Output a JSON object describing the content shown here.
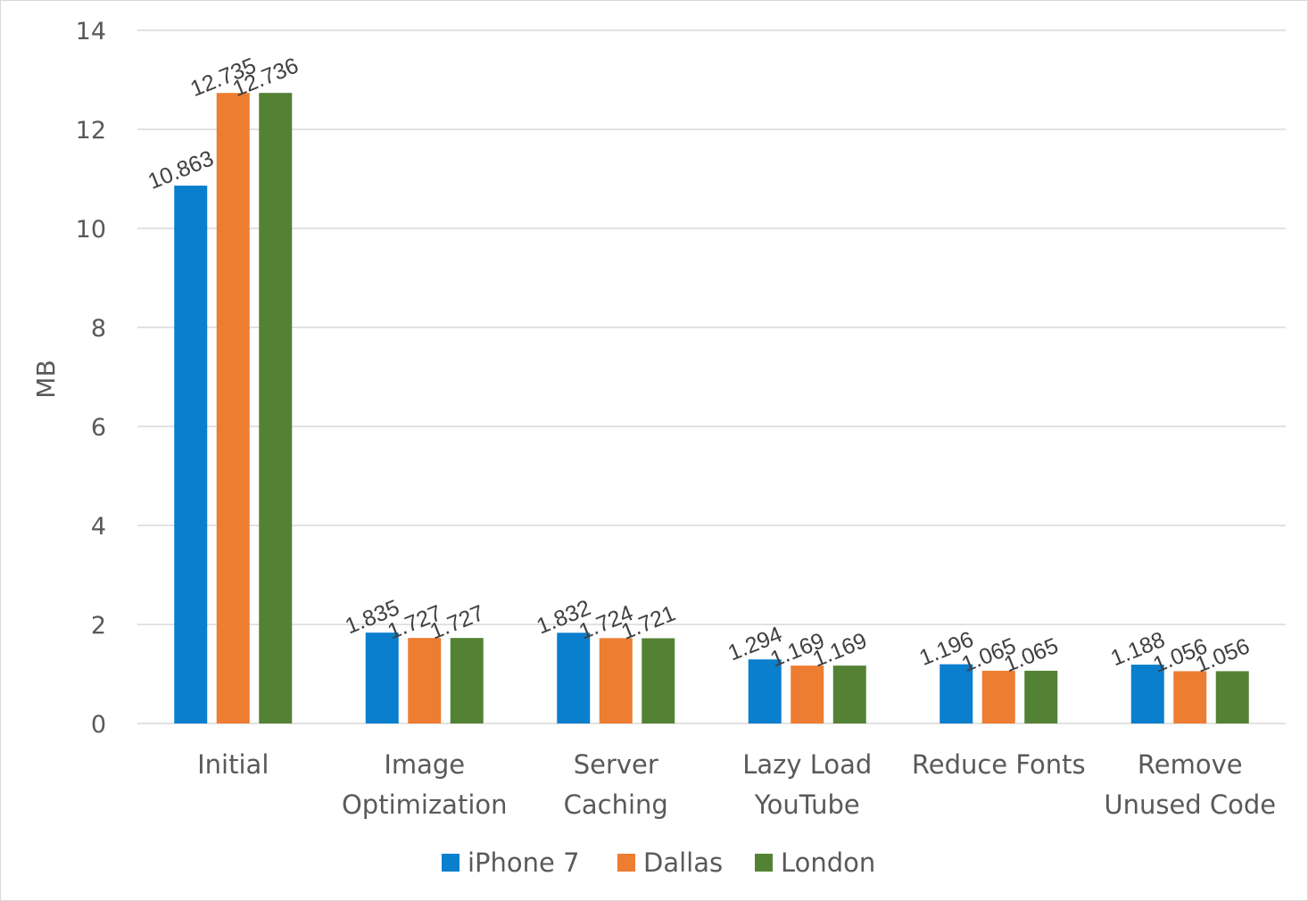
{
  "chart_data": {
    "type": "bar",
    "title": "",
    "xlabel": "",
    "ylabel": "MB",
    "ylim": [
      0,
      14
    ],
    "yticks": [
      "0",
      "2",
      "4",
      "6",
      "8",
      "10",
      "12",
      "14"
    ],
    "grid": true,
    "legend_position": "bottom",
    "categories": [
      [
        "Initial"
      ],
      [
        "Image",
        "Optimization"
      ],
      [
        "Server",
        "Caching"
      ],
      [
        "Lazy Load",
        "YouTube"
      ],
      [
        "Reduce Fonts"
      ],
      [
        "Remove",
        "Unused Code"
      ]
    ],
    "series": [
      {
        "name": "iPhone 7",
        "color": "#0a7fcd",
        "values": [
          10.863,
          1.835,
          1.832,
          1.294,
          1.196,
          1.188
        ],
        "labels": [
          "10.863",
          "1.835",
          "1.832",
          "1.294",
          "1.196",
          "1.188"
        ]
      },
      {
        "name": "Dallas",
        "color": "#ed7d31",
        "values": [
          12.735,
          1.727,
          1.724,
          1.169,
          1.065,
          1.056
        ],
        "labels": [
          "12.735",
          "1.727",
          "1.724",
          "1.169",
          "1.065",
          "1.056"
        ]
      },
      {
        "name": "London",
        "color": "#548235",
        "values": [
          12.736,
          1.727,
          1.721,
          1.169,
          1.065,
          1.056
        ],
        "labels": [
          "12.736",
          "1.727",
          "1.721",
          "1.169",
          "1.065",
          "1.056"
        ]
      }
    ]
  }
}
